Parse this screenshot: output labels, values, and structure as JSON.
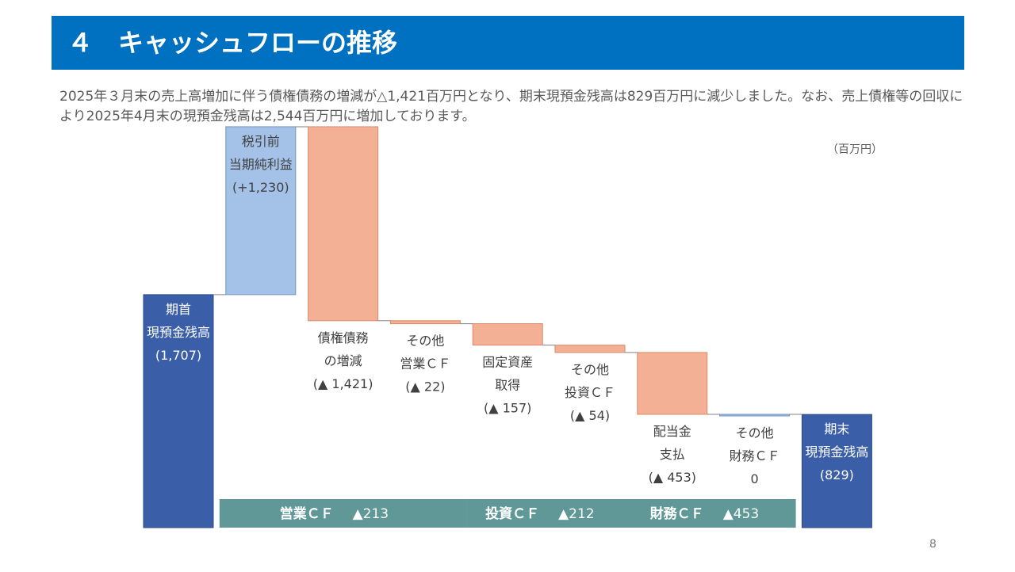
{
  "header": {
    "title": "４　キャッシュフローの推移"
  },
  "description": "2025年３月末の売上高増加に伴う債権債務の増減が△1,421百万円となり、期末現預金残高は829百万円に減少しました。なお、売上債権等の回収により2025年4月末の現預金残高は2,544百万円に増加しております。",
  "unit_label": "（百万円）",
  "page_number": "8",
  "chart_data": {
    "type": "bar",
    "subtype": "waterfall",
    "unit": "百万円",
    "steps": [
      {
        "kind": "total",
        "value": 1707,
        "label_lines": [
          "期首",
          "現預金残高",
          "(1,707)"
        ],
        "label_position": "inside",
        "label_color": "#ffffff"
      },
      {
        "kind": "delta",
        "value": 1230,
        "label_lines": [
          "税引前",
          "当期純利益",
          "(+1,230)"
        ],
        "label_position": "inside",
        "label_color": "#404040"
      },
      {
        "kind": "delta",
        "value": -1421,
        "label_lines": [
          "債権債務",
          "の増減",
          "(▲ 1,421)"
        ],
        "label_position": "below",
        "label_color": "#404040"
      },
      {
        "kind": "delta",
        "value": -22,
        "label_lines": [
          "その他",
          "営業ＣＦ",
          "(▲ 22)"
        ],
        "label_position": "below",
        "label_color": "#404040"
      },
      {
        "kind": "delta",
        "value": -157,
        "label_lines": [
          "固定資産",
          "取得",
          "(▲ 157)"
        ],
        "label_position": "below",
        "label_color": "#404040"
      },
      {
        "kind": "delta",
        "value": -54,
        "label_lines": [
          "その他",
          "投資ＣＦ",
          "(▲ 54)"
        ],
        "label_position": "below",
        "label_color": "#404040"
      },
      {
        "kind": "delta",
        "value": -453,
        "label_lines": [
          "配当金",
          "支払",
          "(▲ 453)"
        ],
        "label_position": "below",
        "label_color": "#404040"
      },
      {
        "kind": "delta",
        "value": 0,
        "label_lines": [
          "その他",
          "財務ＣＦ",
          "0"
        ],
        "label_position": "below",
        "label_color": "#404040"
      },
      {
        "kind": "total",
        "value": 829,
        "label_lines": [
          "期末",
          "現預金残高",
          "(829)"
        ],
        "label_position": "inside",
        "label_color": "#ffffff"
      }
    ],
    "groups": [
      {
        "name": "営業ＣＦ",
        "value": "▲213",
        "from_step": 1,
        "to_step": 3
      },
      {
        "name": "投資ＣＦ",
        "value": "▲212",
        "from_step": 4,
        "to_step": 5
      },
      {
        "name": "財務ＣＦ",
        "value": "▲453",
        "from_step": 6,
        "to_step": 7
      }
    ],
    "colors": {
      "total": "#3a5fa8",
      "increase": "#a4c2e8",
      "decrease": "#f4b094",
      "group_band": "#5f9896",
      "label_text": "#404040"
    }
  }
}
